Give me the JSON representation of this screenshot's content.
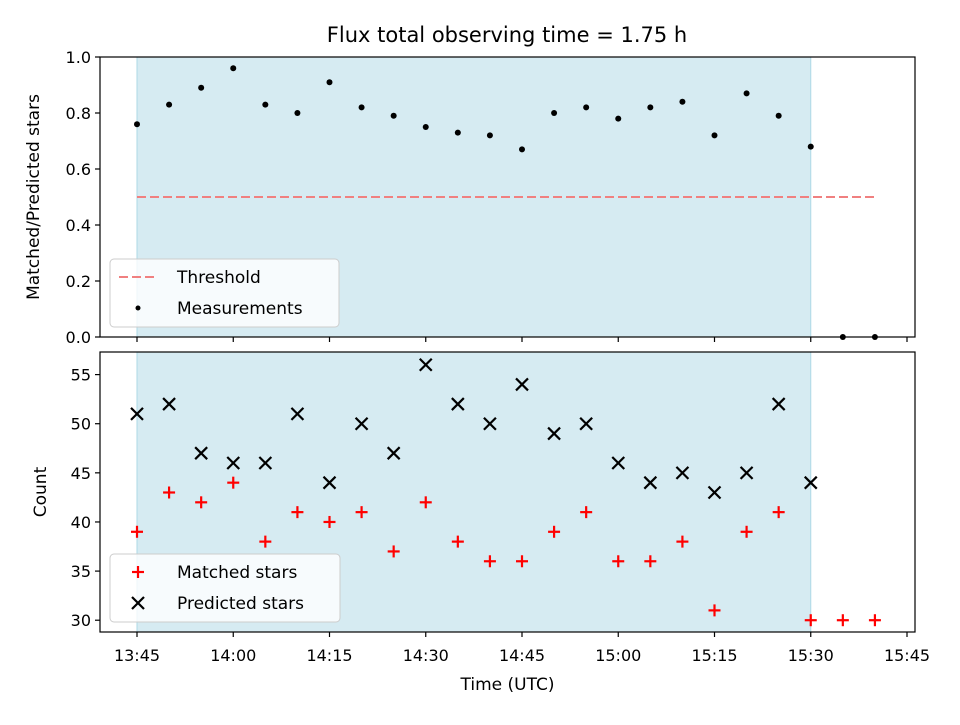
{
  "title": "Flux total observing time = 1.75 h",
  "colors": {
    "span": "#add8e6",
    "threshold": "#f08080",
    "measurement": "#000000",
    "matched": "#ff0000",
    "predicted": "#000000"
  },
  "chart_data": [
    {
      "type": "scatter",
      "name": "ratio-panel",
      "title": "Flux total observing time = 1.75 h",
      "ylabel": "Matched/Predicted stars",
      "xlabel": "",
      "ylim": [
        0.0,
        1.0
      ],
      "yticks": [
        "0.0",
        "0.2",
        "0.4",
        "0.6",
        "0.8",
        "1.0"
      ],
      "ytick_values": [
        0.0,
        0.2,
        0.4,
        0.6,
        0.8,
        1.0
      ],
      "x_range": [
        "13:45",
        "15:45"
      ],
      "x_ticks": [
        "13:45",
        "14:00",
        "14:15",
        "14:30",
        "14:45",
        "15:00",
        "15:15",
        "15:30",
        "15:45"
      ],
      "shaded_span": [
        "13:45",
        "15:30"
      ],
      "legend": {
        "placement": "lower-left",
        "entries": [
          "Threshold",
          "Measurements"
        ]
      },
      "series": [
        {
          "name": "Threshold",
          "kind": "dashed-line",
          "x": [
            "13:45",
            "15:40"
          ],
          "values": [
            0.5,
            0.5
          ]
        },
        {
          "name": "Measurements",
          "kind": "points",
          "x": [
            "13:45",
            "13:50",
            "13:55",
            "14:00",
            "14:05",
            "14:10",
            "14:15",
            "14:20",
            "14:25",
            "14:30",
            "14:35",
            "14:40",
            "14:45",
            "14:50",
            "14:55",
            "15:00",
            "15:05",
            "15:10",
            "15:15",
            "15:20",
            "15:25",
            "15:30",
            "15:35",
            "15:40"
          ],
          "values": [
            0.76,
            0.83,
            0.89,
            0.96,
            0.83,
            0.8,
            0.91,
            0.82,
            0.79,
            0.75,
            0.73,
            0.72,
            0.67,
            0.8,
            0.82,
            0.78,
            0.82,
            0.84,
            0.72,
            0.87,
            0.79,
            0.68,
            0.0,
            0.0
          ]
        }
      ]
    },
    {
      "type": "scatter",
      "name": "count-panel",
      "ylabel": "Count",
      "xlabel": "Time (UTC)",
      "ylim": [
        28.8,
        57.3
      ],
      "yticks": [
        "30",
        "35",
        "40",
        "45",
        "50",
        "55"
      ],
      "ytick_values": [
        30,
        35,
        40,
        45,
        50,
        55
      ],
      "x_range": [
        "13:45",
        "15:45"
      ],
      "x_ticks": [
        "13:45",
        "14:00",
        "14:15",
        "14:30",
        "14:45",
        "15:00",
        "15:15",
        "15:30",
        "15:45"
      ],
      "shaded_span": [
        "13:45",
        "15:30"
      ],
      "legend": {
        "placement": "lower-left",
        "entries": [
          "Matched stars",
          "Predicted stars"
        ]
      },
      "series": [
        {
          "name": "Matched stars",
          "kind": "plus",
          "x": [
            "13:45",
            "13:50",
            "13:55",
            "14:00",
            "14:05",
            "14:10",
            "14:15",
            "14:20",
            "14:25",
            "14:30",
            "14:35",
            "14:40",
            "14:45",
            "14:50",
            "14:55",
            "15:00",
            "15:05",
            "15:10",
            "15:15",
            "15:20",
            "15:25",
            "15:30",
            "15:35",
            "15:40"
          ],
          "values": [
            39,
            43,
            42,
            44,
            38,
            41,
            40,
            41,
            37,
            42,
            38,
            36,
            36,
            39,
            41,
            36,
            36,
            38,
            31,
            39,
            41,
            30,
            30,
            30
          ]
        },
        {
          "name": "Predicted stars",
          "kind": "cross",
          "x": [
            "13:45",
            "13:50",
            "13:55",
            "14:00",
            "14:05",
            "14:10",
            "14:15",
            "14:20",
            "14:25",
            "14:30",
            "14:35",
            "14:40",
            "14:45",
            "14:50",
            "14:55",
            "15:00",
            "15:05",
            "15:10",
            "15:15",
            "15:20",
            "15:25",
            "15:30"
          ],
          "values": [
            51,
            52,
            47,
            46,
            46,
            51,
            44,
            50,
            47,
            56,
            52,
            50,
            54,
            49,
            50,
            46,
            44,
            45,
            43,
            45,
            52,
            44
          ]
        }
      ]
    }
  ]
}
